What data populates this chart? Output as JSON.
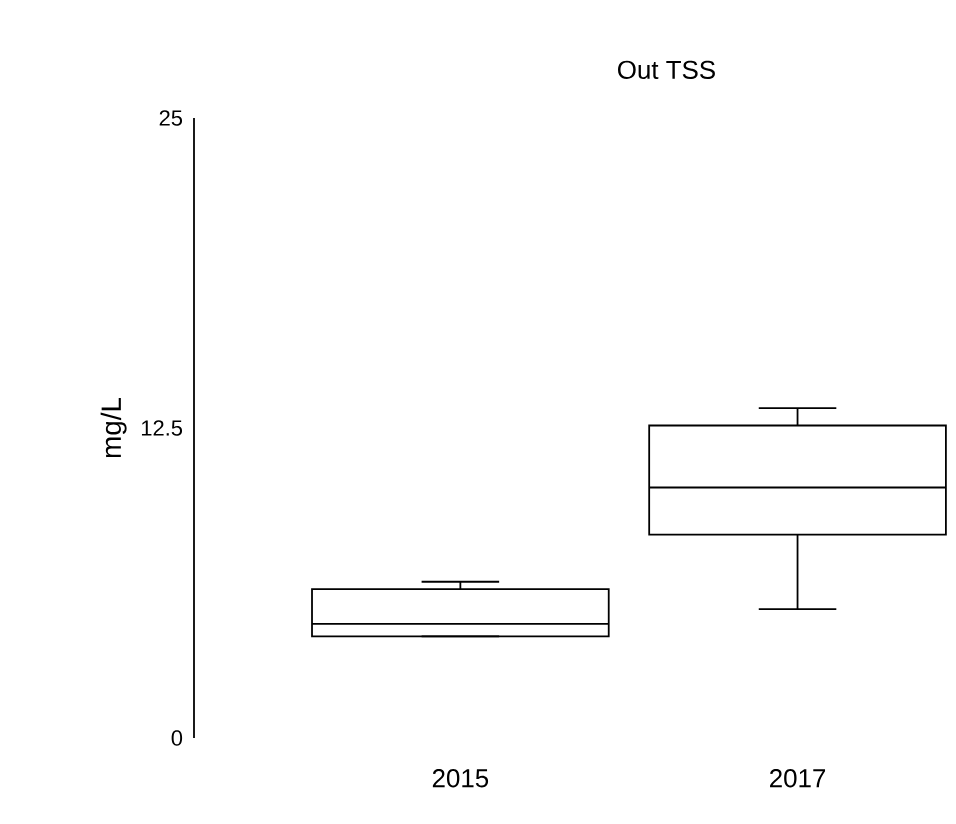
{
  "chart_data": {
    "type": "box",
    "title": "Out TSS",
    "ylabel": "mg/L",
    "categories": [
      "2015",
      "2017"
    ],
    "boxes": [
      {
        "low": 4.1,
        "q1": 4.1,
        "median": 4.6,
        "q3": 6.0,
        "high": 6.3
      },
      {
        "low": 5.2,
        "q1": 8.2,
        "median": 10.1,
        "q3": 12.6,
        "high": 13.3
      }
    ],
    "ylim": [
      0,
      25
    ],
    "yticks": [
      0,
      12.5,
      25
    ]
  }
}
